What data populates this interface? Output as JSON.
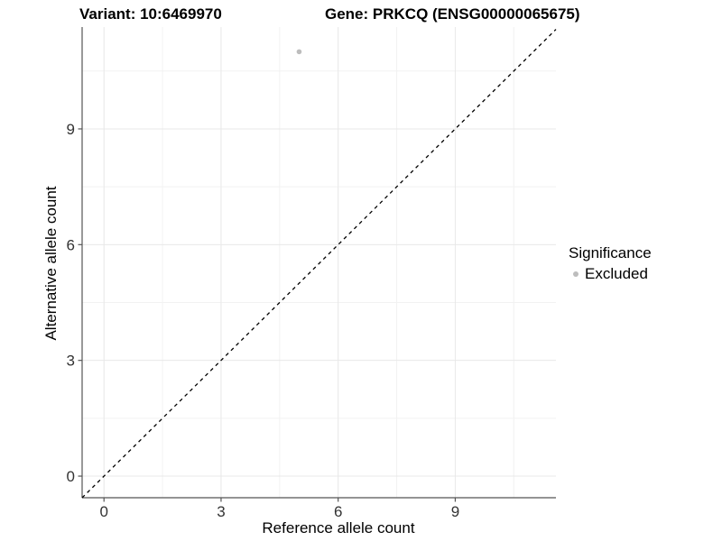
{
  "chart_data": {
    "type": "scatter",
    "titles": {
      "left": "Variant: 10:6469970",
      "right": "Gene: PRKCQ (ENSG00000065675)"
    },
    "xlabel": "Reference allele count",
    "ylabel": "Alternative allele count",
    "xlim": [
      -0.56,
      11.58
    ],
    "ylim": [
      -0.56,
      11.64
    ],
    "x_ticks": [
      0,
      3,
      6,
      9
    ],
    "y_ticks": [
      0,
      3,
      6,
      9
    ],
    "x_minor_ticks": [
      1.5,
      4.5,
      7.5,
      10.5
    ],
    "y_minor_ticks": [
      1.5,
      4.5,
      7.5,
      10.5
    ],
    "grid": "major+minor",
    "reference_line": {
      "kind": "identity",
      "slope": 1,
      "intercept": 0,
      "style": "dashed",
      "color": "#000000"
    },
    "series": [
      {
        "name": "Excluded",
        "color": "#bdbdbd",
        "points": [
          {
            "x": 5,
            "y": 11
          }
        ]
      }
    ],
    "legend": {
      "title": "Significance",
      "position": "right",
      "items": [
        {
          "label": "Excluded",
          "color": "#bdbdbd"
        }
      ]
    },
    "style": {
      "background": "#ffffff",
      "grid_major_color": "#e8e8e8",
      "grid_minor_color": "#f2f2f2",
      "axis_line_color": "#555555",
      "tick_color": "#555555",
      "tick_label_color": "#333333",
      "point_radius": 2.8
    }
  }
}
